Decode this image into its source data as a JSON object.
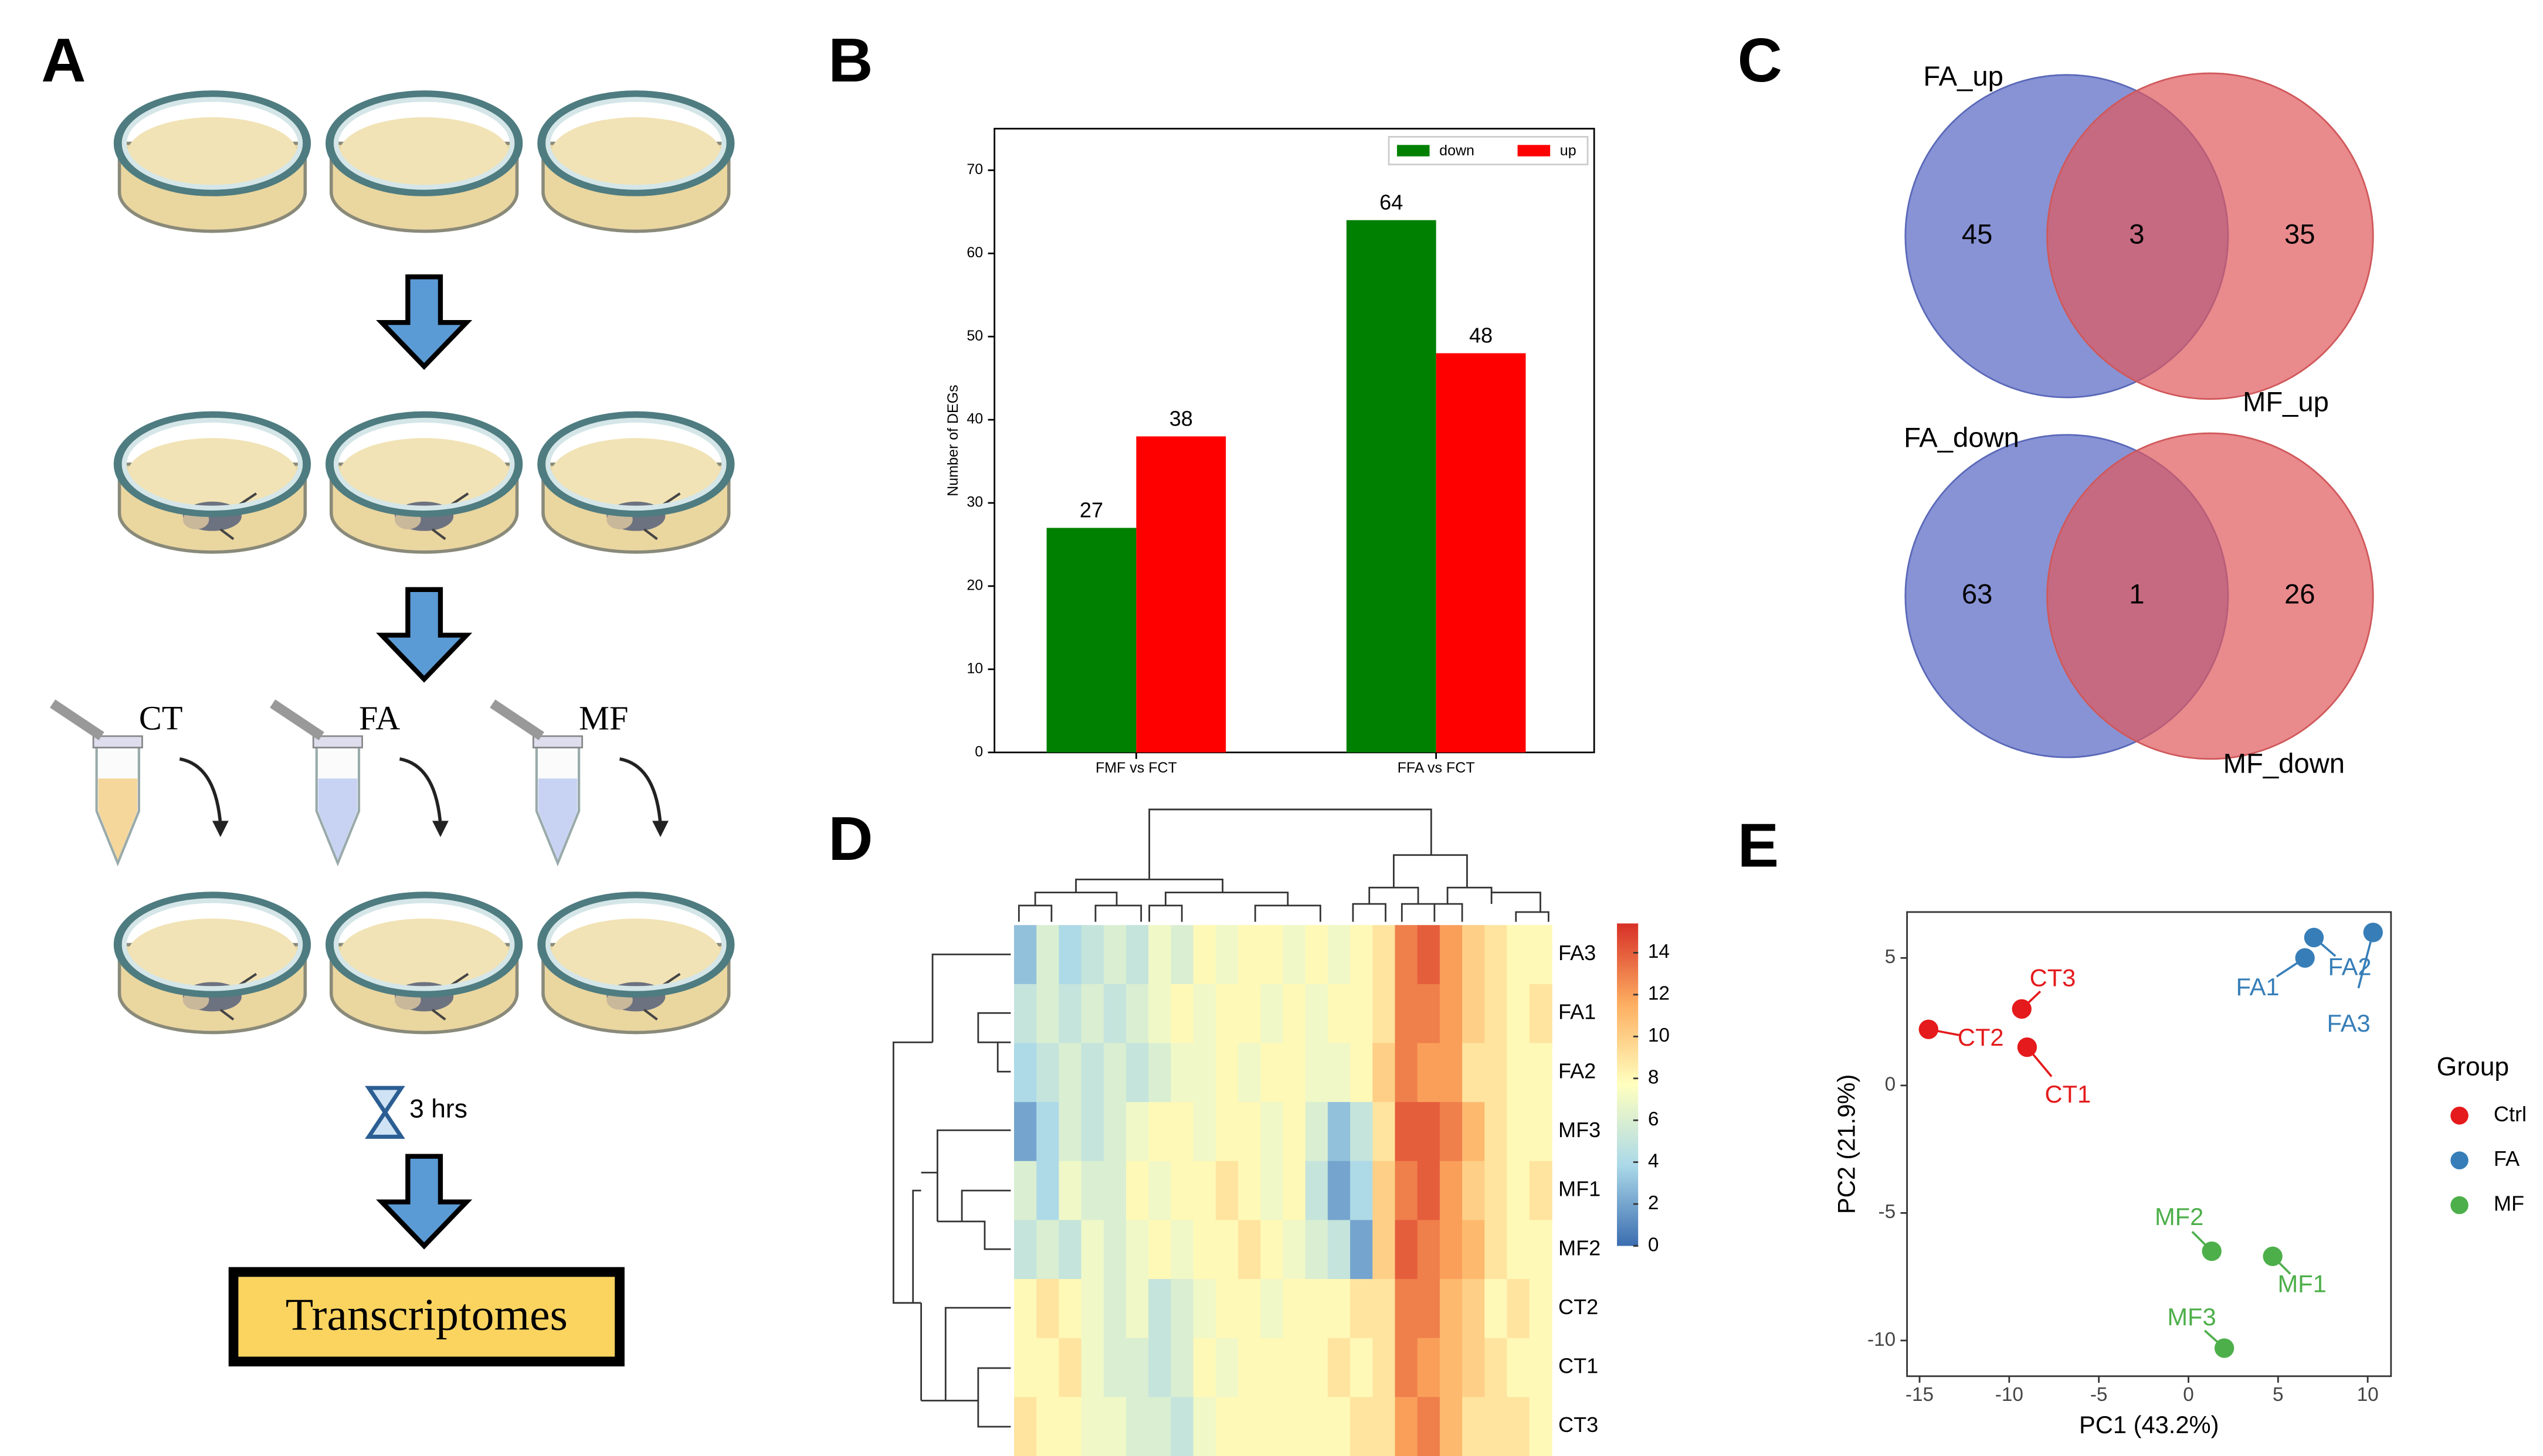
{
  "panel_labels": [
    "A",
    "B",
    "C",
    "D",
    "E"
  ],
  "workflow": {
    "groups": [
      "CT",
      "FA",
      "MF"
    ],
    "duration": "3 hrs",
    "output": "Transcriptomes"
  },
  "venn": [
    {
      "sets": [
        "FA_up",
        "MF_up"
      ],
      "counts": [
        45,
        3,
        35
      ]
    },
    {
      "sets": [
        "FA_down",
        "MF_down"
      ],
      "counts": [
        63,
        1,
        26
      ]
    }
  ],
  "chart_data": [
    {
      "type": "bar",
      "ylabel": "Number of DEGs",
      "categories": [
        "FMF vs FCT",
        "FFA vs FCT"
      ],
      "series": [
        {
          "name": "down",
          "color": "#008000",
          "values": [
            27,
            64
          ]
        },
        {
          "name": "up",
          "color": "#ff0000",
          "values": [
            38,
            48
          ]
        }
      ],
      "ylim": [
        0,
        75
      ],
      "yticks": [
        0,
        10,
        20,
        30,
        40,
        50,
        60,
        70
      ],
      "legend": "upper right"
    },
    {
      "type": "heatmap",
      "rows": [
        "FA3",
        "FA1",
        "FA2",
        "MF3",
        "MF1",
        "MF2",
        "CT2",
        "CT1",
        "CT3"
      ],
      "values": [
        [
          3,
          6,
          4,
          5,
          6,
          5,
          7,
          6,
          8,
          7,
          8,
          8,
          7,
          8,
          7,
          8,
          9,
          13,
          14,
          12,
          10,
          9,
          8,
          8
        ],
        [
          5,
          6,
          5,
          6,
          5,
          6,
          7,
          8,
          7,
          8,
          8,
          7,
          8,
          7,
          8,
          8,
          9,
          13,
          13,
          12,
          10,
          9,
          8,
          9
        ],
        [
          4,
          5,
          6,
          5,
          6,
          5,
          6,
          7,
          7,
          8,
          7,
          8,
          8,
          7,
          7,
          8,
          10,
          13,
          12,
          12,
          9,
          9,
          8,
          8
        ],
        [
          2,
          4,
          6,
          5,
          6,
          7,
          8,
          8,
          7,
          8,
          8,
          7,
          8,
          6,
          3,
          5,
          9,
          14,
          14,
          13,
          11,
          9,
          8,
          8
        ],
        [
          6,
          4,
          7,
          6,
          6,
          8,
          7,
          8,
          8,
          9,
          8,
          7,
          8,
          5,
          2,
          4,
          10,
          13,
          14,
          12,
          10,
          9,
          8,
          9
        ],
        [
          5,
          6,
          5,
          7,
          6,
          7,
          8,
          7,
          8,
          8,
          9,
          8,
          7,
          6,
          5,
          2,
          10,
          14,
          13,
          12,
          11,
          9,
          8,
          8
        ],
        [
          8,
          9,
          8,
          7,
          6,
          7,
          5,
          6,
          7,
          8,
          8,
          7,
          8,
          8,
          8,
          9,
          9,
          13,
          13,
          11,
          10,
          8,
          9,
          8
        ],
        [
          8,
          8,
          9,
          7,
          6,
          6,
          5,
          6,
          8,
          7,
          8,
          8,
          8,
          8,
          9,
          8,
          9,
          13,
          12,
          11,
          10,
          9,
          8,
          8
        ],
        [
          9,
          8,
          8,
          7,
          7,
          6,
          6,
          5,
          7,
          8,
          8,
          8,
          8,
          8,
          8,
          9,
          9,
          12,
          13,
          11,
          9,
          9,
          9,
          8
        ]
      ],
      "clim": [
        0,
        15.4
      ],
      "cticks": [
        0,
        2,
        4,
        6,
        8,
        10,
        12,
        14
      ],
      "colormap": [
        "#3b6db0",
        "#abd9e9",
        "#ffffbf",
        "#fdae61",
        "#d73027"
      ]
    },
    {
      "type": "scatter",
      "xlabel": "PC1 (43.2%)",
      "ylabel": "PC2 (21.9%)",
      "legend_title": "Group",
      "series": [
        {
          "name": "Ctrl",
          "color": "#e41a1c",
          "labels": [
            "CT1",
            "CT2",
            "CT3"
          ],
          "x": [
            -9,
            -14.5,
            -9.3
          ],
          "values": [
            1.5,
            2.2,
            3
          ]
        },
        {
          "name": "FA",
          "color": "#377eb8",
          "labels": [
            "FA1",
            "FA2",
            "FA3"
          ],
          "x": [
            6.5,
            7,
            10.3
          ],
          "values": [
            5,
            5.8,
            6
          ]
        },
        {
          "name": "MF",
          "color": "#4daf4a",
          "labels": [
            "MF1",
            "MF2",
            "MF3"
          ],
          "x": [
            4.7,
            1.3,
            2
          ],
          "values": [
            -6.7,
            -6.5,
            -10.3
          ]
        }
      ],
      "xlim": [
        -15.7,
        11.3
      ],
      "ylim": [
        -11.4,
        6.8
      ],
      "xticks": [
        -15,
        -10,
        -5,
        0,
        5,
        10
      ],
      "yticks": [
        -10,
        -5,
        0,
        5
      ]
    }
  ]
}
